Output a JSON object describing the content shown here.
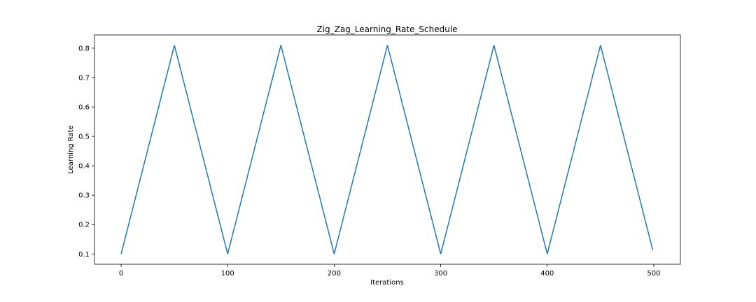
{
  "chart_data": {
    "type": "line",
    "title": "Zig_Zag_Learning_Rate_Schedule",
    "xlabel": "Iterations",
    "ylabel": "Learning Rate",
    "xlim": [
      -25,
      525
    ],
    "ylim": [
      0.065,
      0.845
    ],
    "xticks": [
      0,
      100,
      200,
      300,
      400,
      500
    ],
    "yticks": [
      0.1,
      0.2,
      0.3,
      0.4,
      0.5,
      0.6,
      0.7,
      0.8
    ],
    "grid": false,
    "line_color": "#1f77b4",
    "series": [
      {
        "x": [
          0,
          50,
          100,
          150,
          200,
          250,
          300,
          350,
          400,
          450,
          499
        ],
        "values": [
          0.1,
          0.81,
          0.1,
          0.81,
          0.1,
          0.81,
          0.1,
          0.81,
          0.1,
          0.81,
          0.114
        ]
      }
    ]
  }
}
